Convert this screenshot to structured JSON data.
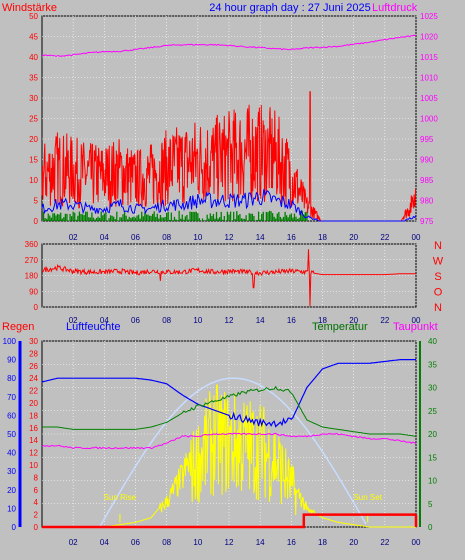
{
  "title": "24 hour graph day : 27 Juni 2025",
  "colors": {
    "background": "#c0c0c0",
    "red": "#ff0000",
    "magenta": "#ff00ff",
    "blue": "#0000ff",
    "navy": "#0000cc",
    "green": "#008000",
    "darkgreen": "#007000",
    "yellow": "#ffff00",
    "lightblue": "#c8dcff",
    "black": "#000000"
  },
  "chart_data": [
    {
      "type": "line",
      "name": "wind-pressure",
      "left_label": "Windstärke",
      "right_label": "Luftdruck",
      "x_ticks": [
        "02",
        "04",
        "06",
        "08",
        "10",
        "12",
        "14",
        "16",
        "18",
        "20",
        "22",
        "00"
      ],
      "y_left_ticks": [
        0,
        5,
        10,
        15,
        20,
        25,
        30,
        35,
        40,
        45,
        50
      ],
      "y_right_ticks": [
        975,
        980,
        985,
        990,
        995,
        1000,
        1005,
        1010,
        1015,
        1020,
        1025
      ],
      "ylim_left": [
        0,
        50
      ],
      "ylim_right": [
        975,
        1025
      ],
      "grid": true,
      "series": [
        {
          "role": "gusts",
          "color": "#ff0000",
          "x": [
            0,
            1,
            2,
            3,
            4,
            5,
            6,
            7,
            8,
            9,
            10,
            11,
            12,
            13,
            14,
            15,
            16,
            17,
            18,
            19,
            20,
            21,
            22,
            23,
            24
          ],
          "values": [
            12,
            14,
            13,
            12,
            12,
            13,
            11,
            12,
            14,
            15,
            16,
            16,
            17,
            18,
            18,
            17,
            12,
            4,
            0,
            0,
            0,
            0,
            0,
            0,
            6
          ]
        },
        {
          "role": "wind",
          "color": "#0000ff",
          "x": [
            0,
            1,
            2,
            3,
            4,
            5,
            6,
            7,
            8,
            9,
            10,
            11,
            12,
            13,
            14,
            15,
            16,
            17,
            18,
            19,
            20,
            21,
            22,
            23,
            24
          ],
          "values": [
            3,
            4,
            4,
            3,
            3,
            4,
            3,
            3,
            4,
            4,
            5,
            5,
            5,
            5,
            6,
            5,
            4,
            1,
            0,
            0,
            0,
            0,
            0,
            0,
            1
          ]
        },
        {
          "role": "pressure",
          "color": "#ff00ff",
          "x": [
            0,
            1,
            2,
            3,
            4,
            5,
            6,
            7,
            8,
            9,
            10,
            11,
            12,
            13,
            14,
            15,
            16,
            17,
            18,
            19,
            20,
            21,
            22,
            23,
            24
          ],
          "values": [
            1015.5,
            1015.2,
            1015.5,
            1016.0,
            1016.3,
            1016.4,
            1016.8,
            1017.3,
            1017.8,
            1018.0,
            1018.0,
            1018.0,
            1017.8,
            1017.5,
            1017.3,
            1017.0,
            1016.8,
            1017.2,
            1017.4,
            1017.6,
            1018.1,
            1018.6,
            1019.2,
            1019.8,
            1020.2
          ]
        }
      ]
    },
    {
      "type": "line",
      "name": "wind-direction",
      "x_ticks": [
        "02",
        "04",
        "06",
        "08",
        "10",
        "12",
        "14",
        "16",
        "18",
        "20",
        "22",
        "00"
      ],
      "y_ticks": [
        0,
        90,
        180,
        270,
        360
      ],
      "ylim": [
        0,
        360
      ],
      "compass": [
        "N",
        "W",
        "S",
        "O",
        "N"
      ],
      "grid": true,
      "series": [
        {
          "role": "direction",
          "color": "#ff0000",
          "x": [
            0,
            1,
            2,
            3,
            4,
            5,
            6,
            7,
            8,
            9,
            10,
            11,
            12,
            13,
            14,
            15,
            16,
            17,
            18,
            19,
            20,
            21,
            22,
            23,
            24
          ],
          "values": [
            210,
            225,
            205,
            200,
            200,
            205,
            195,
            205,
            200,
            200,
            210,
            200,
            205,
            200,
            195,
            200,
            205,
            200,
            185,
            185,
            185,
            185,
            185,
            190,
            190
          ]
        }
      ]
    },
    {
      "type": "line",
      "name": "temperature-humidity-rain",
      "labels": {
        "rain": "Regen",
        "humidity": "Luftfeuchte",
        "temperature": "Temperatur",
        "dewpoint": "Taupunkt",
        "sunrise": "Sun Rise",
        "sunset": "Sun Set"
      },
      "x_ticks": [
        "02",
        "04",
        "06",
        "08",
        "10",
        "12",
        "14",
        "16",
        "18",
        "20",
        "22",
        "00"
      ],
      "y_rain_ticks": [
        0,
        10,
        20,
        30,
        40,
        50,
        60,
        70,
        80,
        90,
        100
      ],
      "y_humidity_ticks": [
        0,
        2,
        4,
        6,
        8,
        10,
        12,
        14,
        16,
        18,
        20,
        22,
        24,
        26,
        28,
        30
      ],
      "y_right_ticks": [
        0,
        5,
        10,
        15,
        20,
        25,
        30,
        35,
        40
      ],
      "grid": true,
      "series": [
        {
          "role": "humidity",
          "color": "#0000ff",
          "x": [
            0,
            1,
            2,
            3,
            4,
            5,
            6,
            7,
            8,
            9,
            10,
            11,
            12,
            13,
            14,
            15,
            16,
            17,
            18,
            19,
            20,
            21,
            22,
            23,
            24
          ],
          "values": [
            78,
            80,
            80,
            80,
            80,
            80,
            80,
            79,
            77,
            71,
            66,
            63,
            60,
            58,
            56,
            56,
            57,
            75,
            85,
            88,
            88,
            88,
            89,
            90,
            90
          ]
        },
        {
          "role": "temperature",
          "color": "#008000",
          "x": [
            0,
            1,
            2,
            3,
            4,
            5,
            6,
            7,
            8,
            9,
            10,
            11,
            12,
            13,
            14,
            15,
            16,
            17,
            18,
            19,
            20,
            21,
            22,
            23,
            24
          ],
          "values": [
            21.5,
            21.5,
            21.0,
            21.0,
            21.0,
            21.0,
            21.0,
            21.5,
            22.5,
            24.5,
            26.0,
            27.0,
            28.0,
            29.0,
            29.5,
            30.0,
            29.0,
            23.0,
            21.5,
            21.0,
            20.5,
            20.0,
            20.0,
            20.0,
            19.5
          ]
        },
        {
          "role": "dewpoint",
          "color": "#ff00ff",
          "x": [
            0,
            1,
            2,
            3,
            4,
            5,
            6,
            7,
            8,
            9,
            10,
            11,
            12,
            13,
            14,
            15,
            16,
            17,
            18,
            19,
            20,
            21,
            22,
            23,
            24
          ],
          "values": [
            17.5,
            17.5,
            17.0,
            17.0,
            17.0,
            17.0,
            17.0,
            17.0,
            18.0,
            19.5,
            19.5,
            20.0,
            20.0,
            20.0,
            20.0,
            20.0,
            19.5,
            19.5,
            20.0,
            20.0,
            19.5,
            19.0,
            19.0,
            18.5,
            18.0
          ]
        },
        {
          "role": "solar",
          "color": "#ffff00",
          "x": [
            0,
            1,
            2,
            3,
            4,
            5,
            6,
            7,
            8,
            9,
            10,
            11,
            12,
            13,
            14,
            15,
            16,
            17,
            18,
            19,
            20,
            21,
            22,
            23,
            24
          ],
          "values": [
            0,
            0,
            0,
            0,
            0,
            0.5,
            1,
            2,
            6,
            12,
            20,
            26,
            25,
            24,
            23,
            20,
            12,
            4,
            2,
            1,
            0.5,
            0,
            0,
            0,
            0
          ]
        },
        {
          "role": "rain",
          "color": "#ff0000",
          "x": [
            0,
            16.8,
            16.8,
            24
          ],
          "values": [
            0,
            0,
            2,
            2
          ]
        }
      ]
    }
  ]
}
